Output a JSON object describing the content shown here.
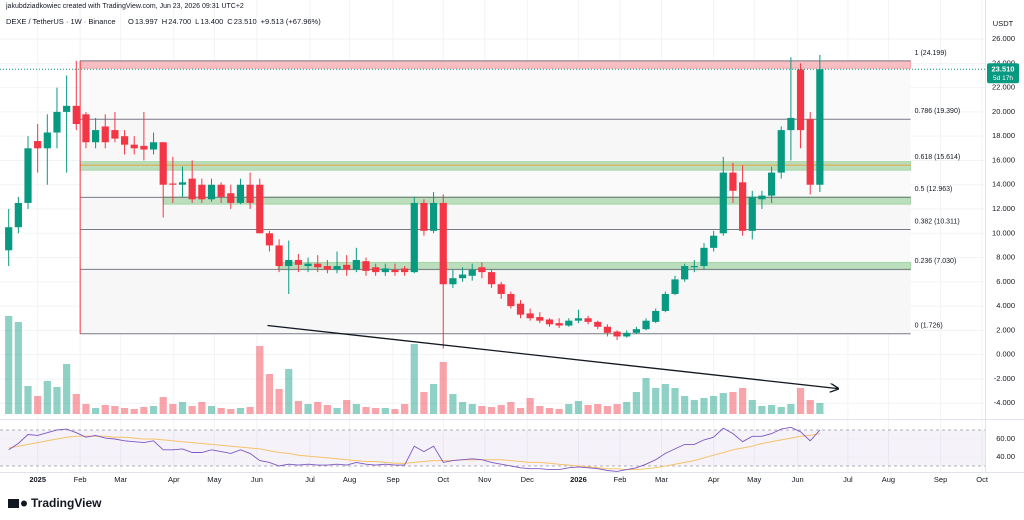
{
  "header": {
    "credit": "jakubdziadkowiec created with TradingView.com, Jun 23, 2026 09:31 UTC+2",
    "symbol": "DEXE / TetherUS · 1W · Binance",
    "ohlc": [
      {
        "key": "O",
        "value": "13.997"
      },
      {
        "key": "H",
        "value": "24.700"
      },
      {
        "key": "L",
        "value": "13.400"
      },
      {
        "key": "C",
        "value": "23.510"
      }
    ],
    "change": "+9.513 (+67.96%)"
  },
  "footer": {
    "brand": "TradingView"
  },
  "chart_data": {
    "type": "candlestick",
    "currency": "USDT",
    "up_color": "#089981",
    "down_color": "#f23645",
    "last_price_label": "23.510",
    "last_price": 23.51,
    "countdown": "5d 17h",
    "xlim": [
      -0.9,
      101.1
    ],
    "xticks": [
      {
        "value": 3.0,
        "label": "2025"
      },
      {
        "value": 7.4,
        "label": "Feb"
      },
      {
        "value": 11.6,
        "label": "Mar"
      },
      {
        "value": 17.1,
        "label": "Apr"
      },
      {
        "value": 21.3,
        "label": "May"
      },
      {
        "value": 25.7,
        "label": "Jun"
      },
      {
        "value": 31.2,
        "label": "Jul"
      },
      {
        "value": 35.3,
        "label": "Aug"
      },
      {
        "value": 39.8,
        "label": "Sep"
      },
      {
        "value": 45.0,
        "label": "Oct"
      },
      {
        "value": 49.3,
        "label": "Nov"
      },
      {
        "value": 53.7,
        "label": "Dec"
      },
      {
        "value": 59.0,
        "label": "2026"
      },
      {
        "value": 63.3,
        "label": "Feb"
      },
      {
        "value": 67.6,
        "label": "Mar"
      },
      {
        "value": 73.0,
        "label": "Apr"
      },
      {
        "value": 77.2,
        "label": "May"
      },
      {
        "value": 81.7,
        "label": "Jun"
      },
      {
        "value": 86.9,
        "label": "Jul"
      },
      {
        "value": 91.1,
        "label": "Aug"
      },
      {
        "value": 96.5,
        "label": "Sep"
      },
      {
        "value": 100.8,
        "label": "Oct"
      }
    ],
    "ylim": [
      -5.3,
      27.9
    ],
    "yticks": [
      {
        "value": 26,
        "label": "26.000"
      },
      {
        "value": 24,
        "label": "24.000"
      },
      {
        "value": 22,
        "label": "22.000"
      },
      {
        "value": 20,
        "label": "20.000"
      },
      {
        "value": 18,
        "label": "18.000"
      },
      {
        "value": 16,
        "label": "16.000"
      },
      {
        "value": 14,
        "label": "14.000"
      },
      {
        "value": 12,
        "label": "12.000"
      },
      {
        "value": 10,
        "label": "10.000"
      },
      {
        "value": 8,
        "label": "8.000"
      },
      {
        "value": 6,
        "label": "6.000"
      },
      {
        "value": 4,
        "label": "4.000"
      },
      {
        "value": 2,
        "label": "2.000"
      },
      {
        "value": 0,
        "label": "0.000"
      },
      {
        "value": -2,
        "label": "-2.000"
      },
      {
        "value": -4,
        "label": "-4.000"
      }
    ],
    "candles": [
      {
        "o": 8.6,
        "h": 12,
        "l": 7.3,
        "c": 10.5
      },
      {
        "o": 10.5,
        "h": 13,
        "l": 10,
        "c": 12.5
      },
      {
        "o": 12.5,
        "h": 18,
        "l": 12,
        "c": 17
      },
      {
        "o": 17.6,
        "h": 19,
        "l": 15,
        "c": 17
      },
      {
        "o": 17,
        "h": 19.8,
        "l": 14,
        "c": 18.3
      },
      {
        "o": 18.3,
        "h": 22,
        "l": 17,
        "c": 20
      },
      {
        "o": 20,
        "h": 23,
        "l": 15,
        "c": 20.5
      },
      {
        "o": 20.5,
        "h": 24.2,
        "l": 18.5,
        "c": 19
      },
      {
        "o": 19.8,
        "h": 20,
        "l": 17,
        "c": 17.5
      },
      {
        "o": 17.5,
        "h": 19.5,
        "l": 17,
        "c": 18.5
      },
      {
        "o": 18.8,
        "h": 19.8,
        "l": 17,
        "c": 17.5
      },
      {
        "o": 18.5,
        "h": 20,
        "l": 17.5,
        "c": 17.8
      },
      {
        "o": 18,
        "h": 18.5,
        "l": 16.5,
        "c": 17.3
      },
      {
        "o": 17.3,
        "h": 18,
        "l": 16.5,
        "c": 17
      },
      {
        "o": 17.2,
        "h": 20,
        "l": 16,
        "c": 16.9
      },
      {
        "o": 16.9,
        "h": 18.3,
        "l": 16.5,
        "c": 17.5
      },
      {
        "o": 17.5,
        "h": 17.5,
        "l": 11.3,
        "c": 14
      },
      {
        "o": 14.1,
        "h": 16.3,
        "l": 12.5,
        "c": 14
      },
      {
        "o": 14,
        "h": 15.5,
        "l": 13,
        "c": 14.2
      },
      {
        "o": 14.5,
        "h": 16,
        "l": 12.5,
        "c": 12.8
      },
      {
        "o": 14,
        "h": 14.5,
        "l": 12.5,
        "c": 12.8
      },
      {
        "o": 12.8,
        "h": 14.5,
        "l": 12.6,
        "c": 14
      },
      {
        "o": 14,
        "h": 14.2,
        "l": 12.5,
        "c": 13
      },
      {
        "o": 13.3,
        "h": 14,
        "l": 12,
        "c": 12.5
      },
      {
        "o": 12.5,
        "h": 14.5,
        "l": 12.4,
        "c": 14
      },
      {
        "o": 14,
        "h": 15,
        "l": 12,
        "c": 12.5
      },
      {
        "o": 14,
        "h": 14.5,
        "l": 10,
        "c": 10
      },
      {
        "o": 10,
        "h": 10.2,
        "l": 8.5,
        "c": 9
      },
      {
        "o": 9,
        "h": 9.5,
        "l": 6.8,
        "c": 7.3
      },
      {
        "o": 7.3,
        "h": 9.4,
        "l": 5,
        "c": 7.8
      },
      {
        "o": 7.8,
        "h": 8.3,
        "l": 6.8,
        "c": 7.4
      },
      {
        "o": 7.3,
        "h": 8,
        "l": 6.8,
        "c": 7.5
      },
      {
        "o": 7.5,
        "h": 8.2,
        "l": 6.8,
        "c": 7.2
      },
      {
        "o": 7.3,
        "h": 7.8,
        "l": 6.7,
        "c": 7
      },
      {
        "o": 7,
        "h": 8.5,
        "l": 6.7,
        "c": 7.3
      },
      {
        "o": 7.4,
        "h": 8.2,
        "l": 6.5,
        "c": 7
      },
      {
        "o": 7,
        "h": 8.8,
        "l": 6.8,
        "c": 7.8
      },
      {
        "o": 7.7,
        "h": 8,
        "l": 6.5,
        "c": 6.9
      },
      {
        "o": 7.2,
        "h": 7.5,
        "l": 6.5,
        "c": 6.8
      },
      {
        "o": 6.8,
        "h": 7.5,
        "l": 6.5,
        "c": 7.1
      },
      {
        "o": 7,
        "h": 7.5,
        "l": 6.5,
        "c": 6.8
      },
      {
        "o": 7.1,
        "h": 7.3,
        "l": 6.5,
        "c": 6.8
      },
      {
        "o": 6.8,
        "h": 13,
        "l": 6.7,
        "c": 12.5
      },
      {
        "o": 12.5,
        "h": 12.8,
        "l": 9.8,
        "c": 10.2
      },
      {
        "o": 10.2,
        "h": 13.4,
        "l": 10,
        "c": 12.5
      },
      {
        "o": 12.5,
        "h": 13.2,
        "l": 0.5,
        "c": 5.8
      },
      {
        "o": 5.8,
        "h": 7,
        "l": 5.5,
        "c": 6.3
      },
      {
        "o": 6.3,
        "h": 7.2,
        "l": 6,
        "c": 6.6
      },
      {
        "o": 6.5,
        "h": 7.5,
        "l": 6.1,
        "c": 7
      },
      {
        "o": 7.2,
        "h": 7.6,
        "l": 6.3,
        "c": 6.8
      },
      {
        "o": 6.8,
        "h": 7,
        "l": 5.5,
        "c": 5.8
      },
      {
        "o": 5.8,
        "h": 6,
        "l": 4.6,
        "c": 5
      },
      {
        "o": 5,
        "h": 5.2,
        "l": 3.8,
        "c": 4
      },
      {
        "o": 4.2,
        "h": 4.5,
        "l": 3,
        "c": 3.3
      },
      {
        "o": 3.4,
        "h": 3.8,
        "l": 2.8,
        "c": 3
      },
      {
        "o": 3.1,
        "h": 3.5,
        "l": 2.6,
        "c": 2.8
      },
      {
        "o": 2.9,
        "h": 3,
        "l": 2.3,
        "c": 2.5
      },
      {
        "o": 2.6,
        "h": 3,
        "l": 2.2,
        "c": 2.4
      },
      {
        "o": 2.4,
        "h": 3,
        "l": 2.3,
        "c": 2.8
      },
      {
        "o": 2.8,
        "h": 3.7,
        "l": 2.6,
        "c": 3
      },
      {
        "o": 3,
        "h": 3.2,
        "l": 2.5,
        "c": 2.7
      },
      {
        "o": 2.7,
        "h": 2.8,
        "l": 2.1,
        "c": 2.3
      },
      {
        "o": 2.3,
        "h": 2.5,
        "l": 1.5,
        "c": 1.8
      },
      {
        "o": 1.9,
        "h": 2,
        "l": 1.2,
        "c": 1.5
      },
      {
        "o": 1.5,
        "h": 2,
        "l": 1.4,
        "c": 1.8
      },
      {
        "o": 1.8,
        "h": 2.3,
        "l": 1.7,
        "c": 2.1
      },
      {
        "o": 2.1,
        "h": 3,
        "l": 2,
        "c": 2.8
      },
      {
        "o": 2.7,
        "h": 3.8,
        "l": 2.6,
        "c": 3.6
      },
      {
        "o": 3.6,
        "h": 5.2,
        "l": 3.5,
        "c": 5
      },
      {
        "o": 5,
        "h": 6.5,
        "l": 4.9,
        "c": 6.2
      },
      {
        "o": 6.2,
        "h": 7.5,
        "l": 6,
        "c": 7.3
      },
      {
        "o": 7.2,
        "h": 7.8,
        "l": 6.8,
        "c": 7.3
      },
      {
        "o": 7.3,
        "h": 9.2,
        "l": 7,
        "c": 8.8
      },
      {
        "o": 8.8,
        "h": 10.2,
        "l": 8.5,
        "c": 9.8
      },
      {
        "o": 10,
        "h": 16.3,
        "l": 9.8,
        "c": 15
      },
      {
        "o": 15,
        "h": 15.8,
        "l": 12.5,
        "c": 13.5
      },
      {
        "o": 14.2,
        "h": 15.6,
        "l": 9.8,
        "c": 10.2
      },
      {
        "o": 10.2,
        "h": 13.5,
        "l": 9.5,
        "c": 13
      },
      {
        "o": 12.8,
        "h": 13.5,
        "l": 12,
        "c": 13.1
      },
      {
        "o": 13.1,
        "h": 15.5,
        "l": 12.5,
        "c": 15
      },
      {
        "o": 15,
        "h": 18.8,
        "l": 14.5,
        "c": 18.5
      },
      {
        "o": 18.5,
        "h": 24.5,
        "l": 16,
        "c": 19.5
      },
      {
        "o": 23.5,
        "h": 24,
        "l": 17,
        "c": 18.5
      },
      {
        "o": 19.4,
        "h": 20,
        "l": 13.2,
        "c": 14
      },
      {
        "o": 13.997,
        "h": 24.7,
        "l": 13.4,
        "c": 23.51
      }
    ],
    "volume_lim": [
      0,
      100
    ],
    "volume": [
      98,
      92,
      28,
      18,
      33,
      27,
      50,
      20,
      10,
      6,
      9,
      8,
      6,
      5,
      7,
      8,
      17,
      10,
      12,
      8,
      12,
      8,
      6,
      5,
      6,
      7,
      68,
      40,
      25,
      45,
      13,
      10,
      12,
      9,
      6,
      14,
      10,
      7,
      6,
      6,
      5,
      10,
      70,
      22,
      30,
      52,
      20,
      12,
      10,
      8,
      7,
      9,
      12,
      6,
      16,
      8,
      6,
      5,
      10,
      13,
      9,
      10,
      8,
      10,
      12,
      22,
      36,
      26,
      30,
      26,
      18,
      14,
      16,
      18,
      21,
      22,
      26,
      14,
      8,
      9,
      7,
      10,
      26,
      14,
      11
    ],
    "fib_x": [
      7.4,
      93.4
    ],
    "fib_levels": [
      {
        "label": "1 (24.199)",
        "value": 24.199,
        "color": "#787b86"
      },
      {
        "label": "0.786 (19.390)",
        "value": 19.39,
        "color": "#787b86"
      },
      {
        "label": "0.618 (15.614)",
        "value": 15.614,
        "color": "#e6a23c"
      },
      {
        "label": "0.5 (12.963)",
        "value": 12.963,
        "color": "#787b86"
      },
      {
        "label": "0.382 (10.311)",
        "value": 10.311,
        "color": "#787b86"
      },
      {
        "label": "0.236 (7.030)",
        "value": 7.03,
        "color": "#787b86"
      },
      {
        "label": "0 (1.726)",
        "value": 1.726,
        "color": "#787b86"
      }
    ],
    "zones": [
      {
        "x": 7.4,
        "from": 23.6,
        "to": 24.2,
        "color": "#f7a9ae"
      },
      {
        "x": 7.4,
        "from": 15.2,
        "to": 15.9,
        "color": "#a5d6a7"
      },
      {
        "x": 16,
        "from": 12.4,
        "to": 13,
        "color": "#a5d6a7"
      },
      {
        "x": 27.9,
        "from": 7,
        "to": 7.6,
        "color": "#a5d6a7"
      }
    ],
    "trendline": {
      "x": [
        26.8,
        85.9
      ],
      "y": [
        2.4,
        -2.8
      ]
    },
    "rsi_lim": [
      23.3,
      78.9
    ],
    "rsi_band": [
      30,
      70
    ],
    "rsi_color": "#7e57c2",
    "rsi_ma_color": "#f5c26b",
    "rsi_ticks": [
      {
        "value": 60,
        "label": "60.00"
      },
      {
        "value": 40,
        "label": "40.00"
      }
    ],
    "rsi": [
      48,
      55,
      65,
      64,
      67,
      70,
      71,
      67,
      62,
      64,
      61,
      60,
      58,
      57,
      56,
      58,
      48,
      48,
      49,
      45,
      45,
      48,
      46,
      44,
      48,
      44,
      36,
      34,
      30,
      32,
      31,
      32,
      31,
      31,
      32,
      31,
      34,
      32,
      31,
      32,
      31,
      31,
      52,
      46,
      52,
      34,
      36,
      37,
      38,
      37,
      34,
      32,
      30,
      28,
      27,
      27,
      26,
      26,
      28,
      29,
      28,
      27,
      25,
      24,
      26,
      28,
      32,
      37,
      44,
      49,
      54,
      54,
      59,
      62,
      72,
      66,
      57,
      63,
      63,
      66,
      71,
      73,
      68,
      58,
      70
    ],
    "rsi_ma": [
      50,
      52,
      54,
      56,
      58,
      60,
      62,
      63,
      63,
      63,
      63,
      62,
      62,
      61,
      60,
      60,
      59,
      58,
      57,
      56,
      55,
      54,
      53,
      52,
      51,
      50,
      49,
      47,
      45,
      44,
      42,
      41,
      40,
      39,
      38,
      37,
      36,
      35,
      35,
      34,
      33,
      33,
      34,
      35,
      36,
      36,
      36,
      37,
      37,
      37,
      37,
      37,
      36,
      35,
      34,
      34,
      33,
      32,
      31,
      30,
      29,
      28,
      27,
      27,
      26,
      26,
      27,
      28,
      30,
      32,
      34,
      36,
      39,
      42,
      45,
      48,
      50,
      52,
      55,
      57,
      59,
      61,
      63,
      64,
      66
    ]
  }
}
